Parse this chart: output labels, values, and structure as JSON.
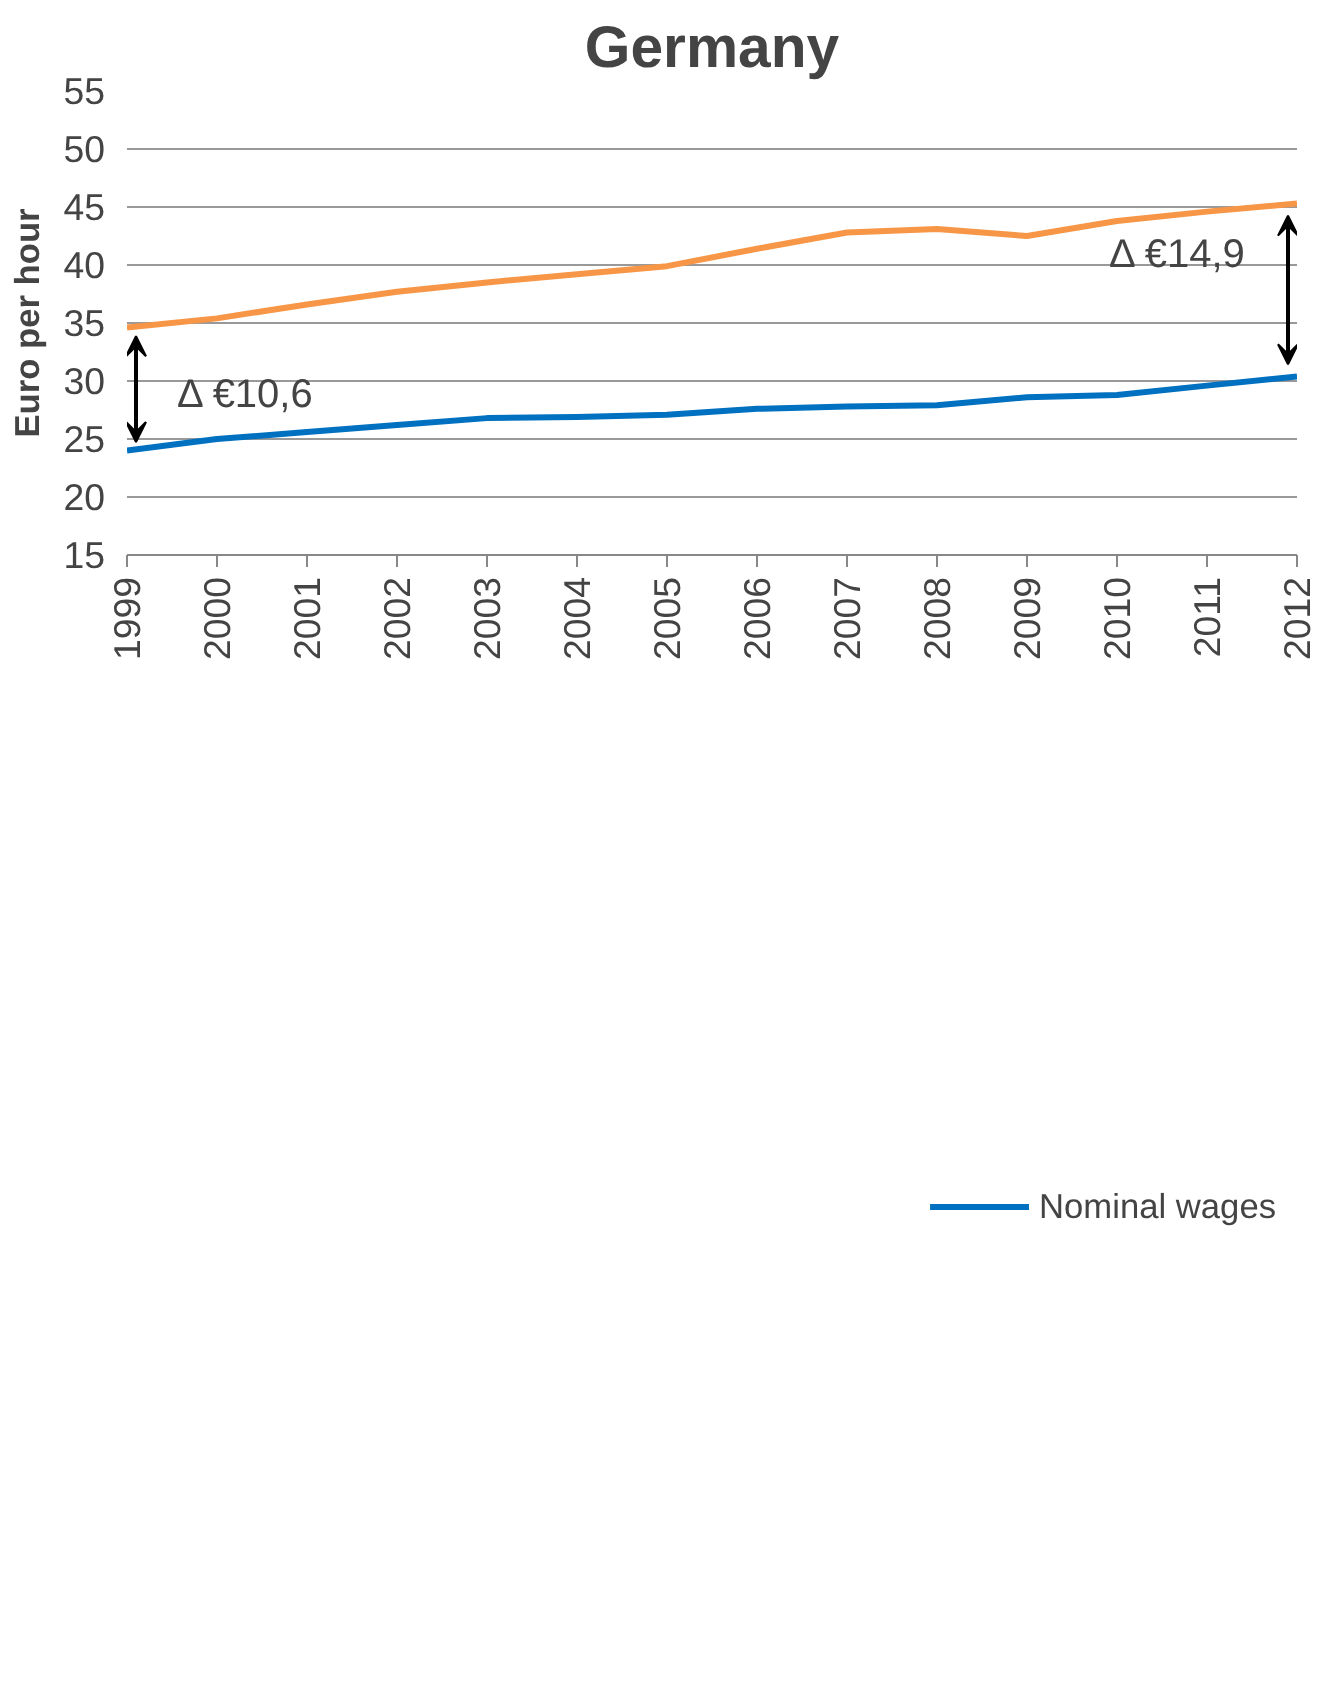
{
  "chart_data": {
    "type": "line",
    "title": "Germany",
    "ylabel": "Euro per hour",
    "categories": [
      "1999",
      "2000",
      "2001",
      "2002",
      "2003",
      "2004",
      "2005",
      "2006",
      "2007",
      "2008",
      "2009",
      "2010",
      "2011",
      "2012"
    ],
    "series": [
      {
        "color": "#f79646",
        "values": [
          34.6,
          35.4,
          36.6,
          37.7,
          38.5,
          39.2,
          39.9,
          41.4,
          42.8,
          43.1,
          42.5,
          43.8,
          44.6,
          45.3
        ]
      },
      {
        "name": "Nominal wages",
        "color": "#0070c0",
        "values": [
          24.0,
          25.0,
          25.6,
          26.2,
          26.8,
          26.9,
          27.1,
          27.6,
          27.8,
          27.9,
          28.6,
          28.8,
          29.6,
          30.4
        ]
      }
    ],
    "ylim": [
      15,
      55
    ],
    "yticks": [
      15,
      20,
      25,
      30,
      35,
      40,
      45,
      50,
      55
    ],
    "grid": "y",
    "legend": "bottom",
    "marker": "none",
    "line_style": "solid",
    "annotations": [
      "Δ €10,6",
      "Δ €14,9"
    ]
  }
}
